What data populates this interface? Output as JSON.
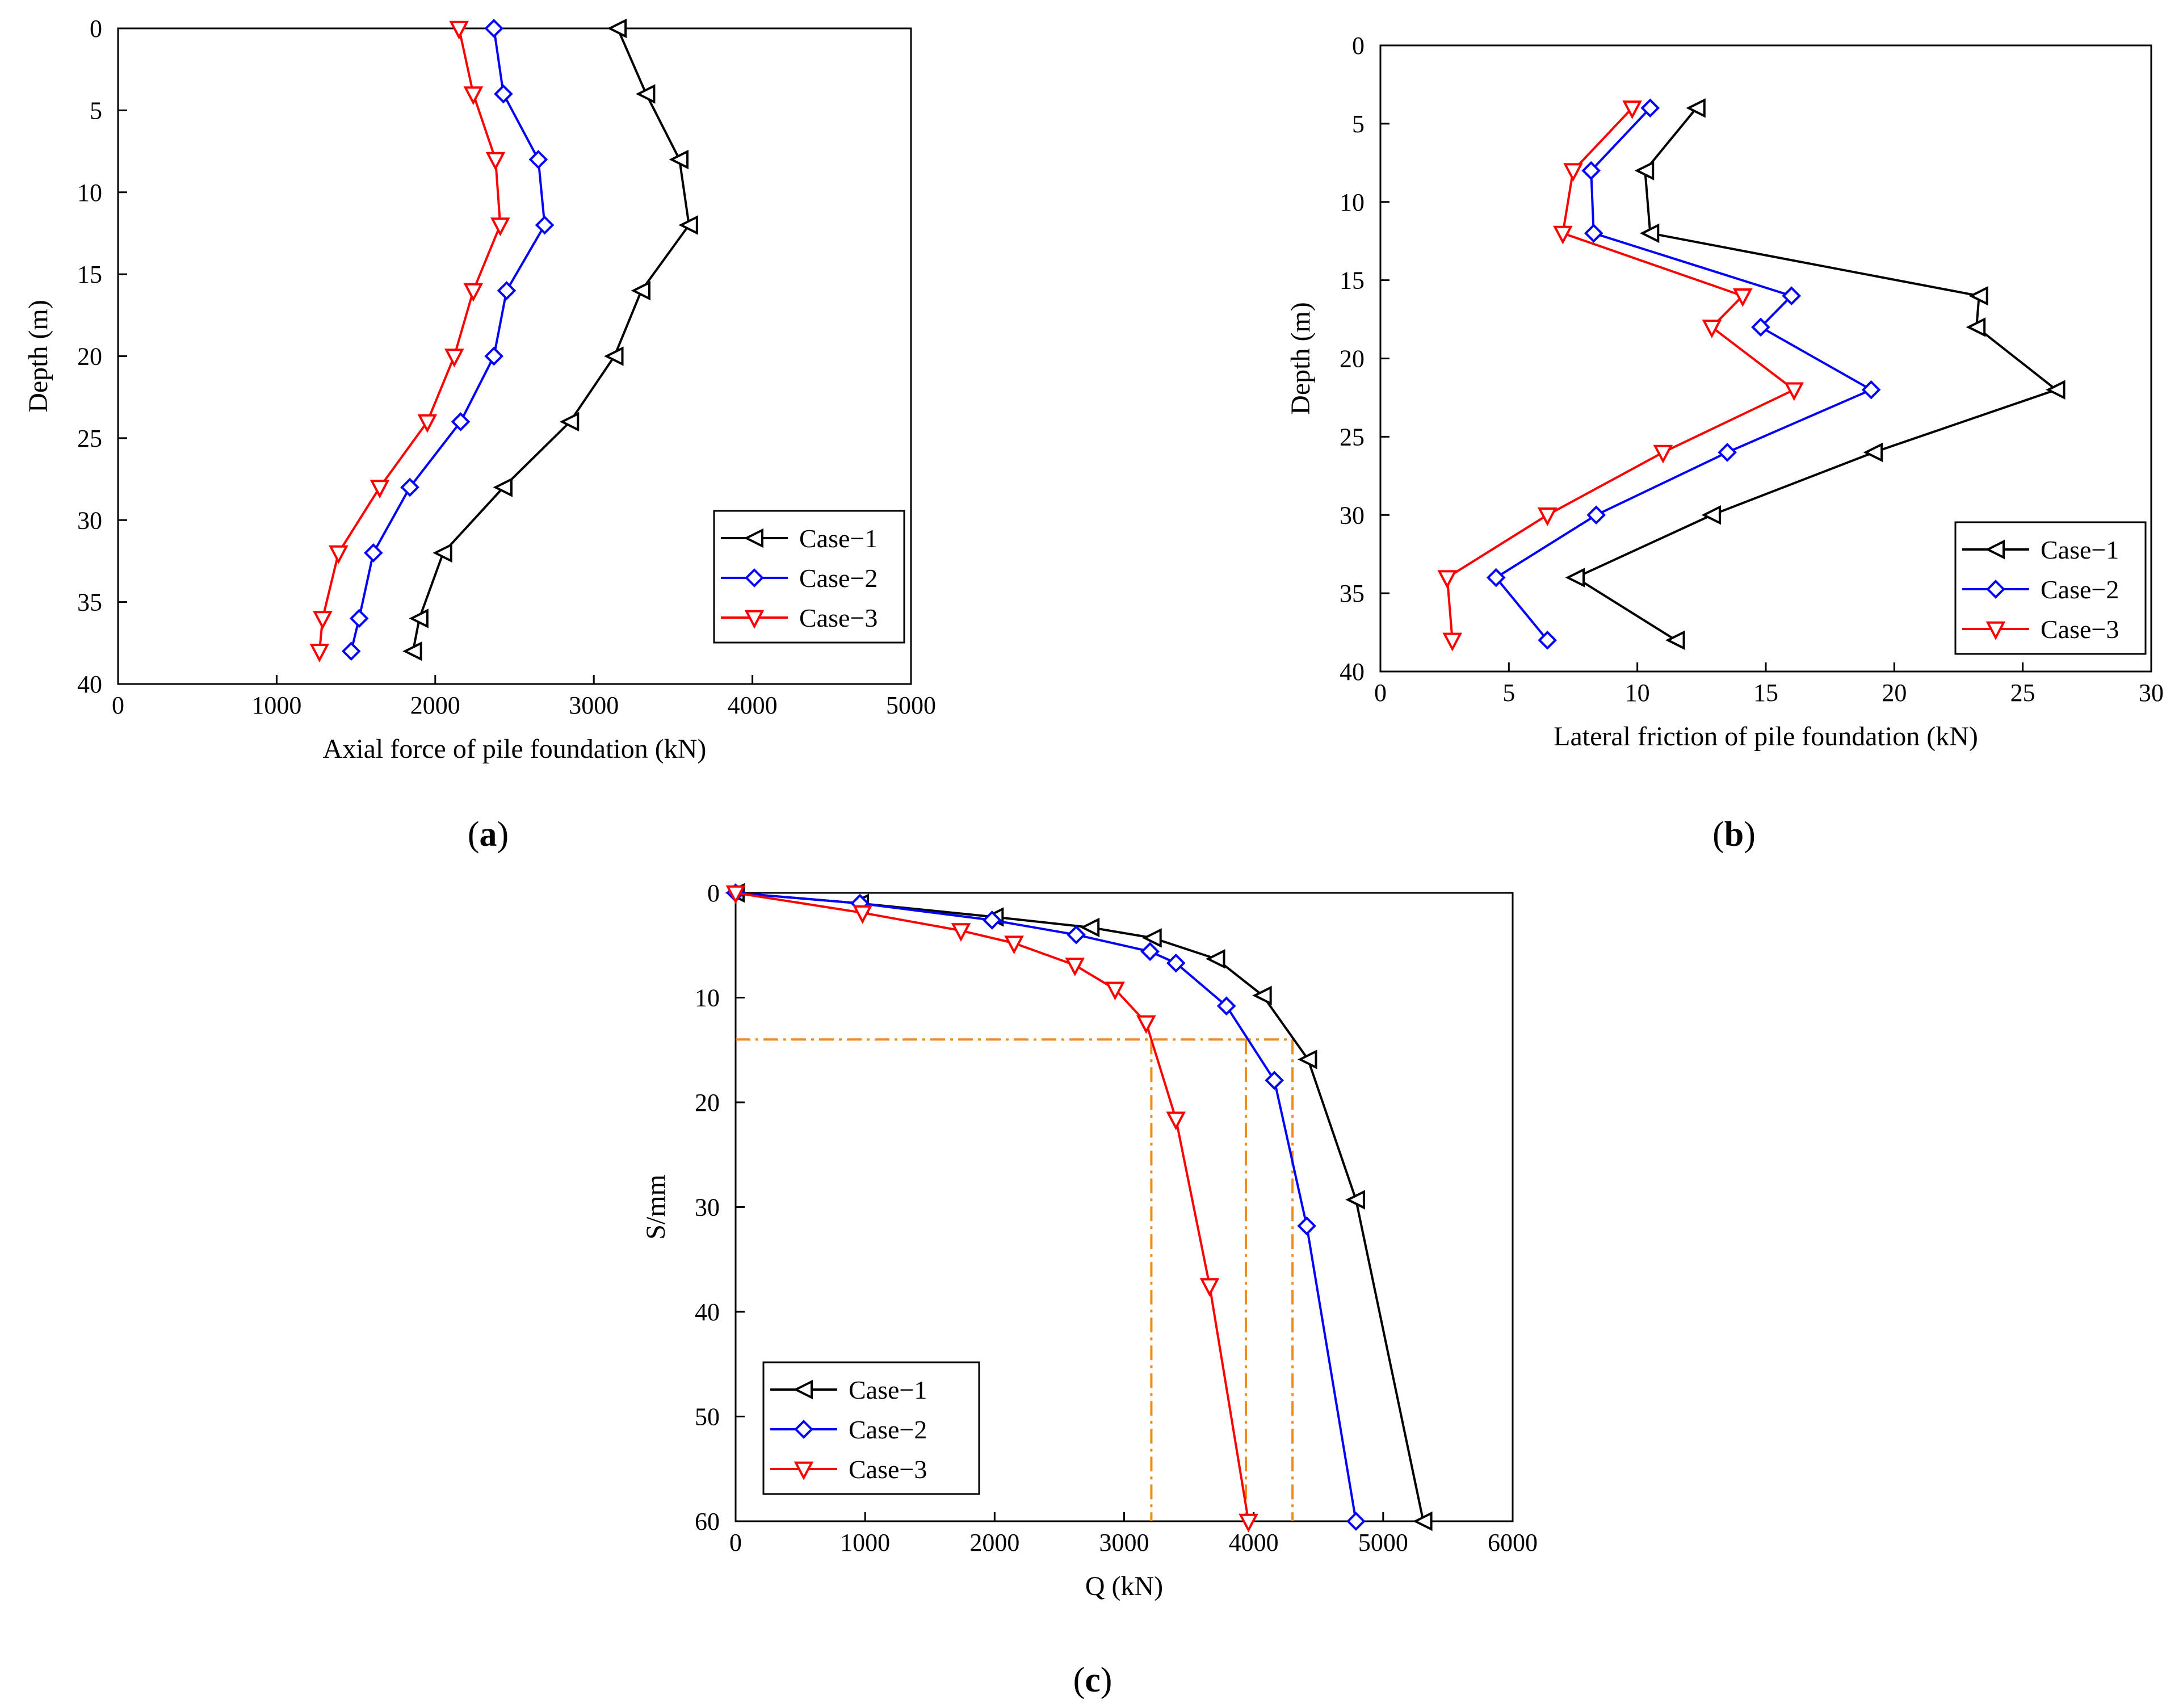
{
  "chart_data": [
    {
      "id": "a",
      "type": "line",
      "panel_label": "a",
      "xlabel": "Axial force of pile foundation (kN)",
      "ylabel": "Depth (m)",
      "xlim": [
        0,
        5000
      ],
      "ylim": [
        0,
        40
      ],
      "y_inverted": true,
      "xticks": [
        0,
        1000,
        2000,
        3000,
        4000,
        5000
      ],
      "yticks": [
        0,
        5,
        10,
        15,
        20,
        25,
        30,
        35,
        40
      ],
      "legend_position": "bottom-right",
      "series": [
        {
          "name": "Case−1",
          "color": "#000000",
          "marker": "triangle-left",
          "x": [
            3150,
            3330,
            3540,
            3600,
            3300,
            3130,
            2850,
            2430,
            2050,
            1900,
            1860
          ],
          "y": [
            0,
            4,
            8,
            12,
            16,
            20,
            24,
            28,
            32,
            36,
            38
          ]
        },
        {
          "name": "Case−2",
          "color": "#0000ff",
          "marker": "diamond",
          "x": [
            2370,
            2430,
            2650,
            2690,
            2450,
            2370,
            2160,
            1840,
            1610,
            1520,
            1470
          ],
          "y": [
            0,
            4,
            8,
            12,
            16,
            20,
            24,
            28,
            32,
            36,
            38
          ]
        },
        {
          "name": "Case−3",
          "color": "#ff0000",
          "marker": "triangle-down",
          "x": [
            2150,
            2240,
            2380,
            2410,
            2240,
            2120,
            1950,
            1650,
            1390,
            1290,
            1270
          ],
          "y": [
            0,
            4,
            8,
            12,
            16,
            20,
            24,
            28,
            32,
            36,
            38
          ]
        }
      ]
    },
    {
      "id": "b",
      "type": "line",
      "panel_label": "b",
      "xlabel": "Lateral friction of pile foundation (kN)",
      "ylabel": "Depth (m)",
      "xlim": [
        0,
        30
      ],
      "ylim": [
        0,
        40
      ],
      "y_inverted": true,
      "xticks": [
        0,
        5,
        10,
        15,
        20,
        25,
        30
      ],
      "yticks": [
        0,
        5,
        10,
        15,
        20,
        25,
        30,
        35,
        40
      ],
      "legend_position": "bottom-right",
      "series": [
        {
          "name": "Case−1",
          "color": "#000000",
          "marker": "triangle-left",
          "x": [
            12.3,
            10.3,
            10.5,
            23.3,
            23.2,
            26.3,
            19.2,
            12.9,
            7.6,
            11.5
          ],
          "y": [
            4,
            8,
            12,
            16,
            18,
            22,
            26,
            30,
            34,
            38
          ]
        },
        {
          "name": "Case−2",
          "color": "#0000ff",
          "marker": "diamond",
          "x": [
            10.5,
            8.2,
            8.3,
            16.0,
            14.8,
            19.1,
            13.5,
            8.4,
            4.5,
            6.5
          ],
          "y": [
            4,
            8,
            12,
            16,
            18,
            22,
            26,
            30,
            34,
            38
          ]
        },
        {
          "name": "Case−3",
          "color": "#ff0000",
          "marker": "triangle-down",
          "x": [
            9.8,
            7.5,
            7.1,
            14.1,
            12.9,
            16.1,
            11.0,
            6.5,
            2.6,
            2.8
          ],
          "y": [
            4,
            8,
            12,
            16,
            18,
            22,
            26,
            30,
            34,
            38
          ]
        }
      ]
    },
    {
      "id": "c",
      "type": "line",
      "panel_label": "c",
      "xlabel": "Q (kN)",
      "ylabel": "S/mm",
      "xlim": [
        0,
        6000
      ],
      "ylim": [
        0,
        60
      ],
      "y_inverted": true,
      "xticks": [
        0,
        1000,
        2000,
        3000,
        4000,
        5000,
        6000
      ],
      "yticks": [
        0,
        10,
        20,
        30,
        40,
        50,
        60
      ],
      "legend_position": "bottom-left",
      "series": [
        {
          "name": "Case−1",
          "color": "#000000",
          "marker": "triangle-left",
          "x": [
            0,
            960,
            2000,
            2740,
            3220,
            3710,
            4070,
            4420,
            4790,
            5310
          ],
          "y": [
            0,
            1.0,
            2.3,
            3.3,
            4.3,
            6.3,
            9.8,
            15.9,
            29.3,
            60
          ]
        },
        {
          "name": "Case−2",
          "color": "#0000ff",
          "marker": "diamond",
          "x": [
            0,
            960,
            1980,
            2630,
            3200,
            3400,
            3790,
            4160,
            4410,
            4790
          ],
          "y": [
            0,
            1.0,
            2.6,
            4.0,
            5.6,
            6.7,
            10.8,
            17.9,
            31.8,
            60
          ]
        },
        {
          "name": "Case−3",
          "color": "#ff0000",
          "marker": "triangle-down",
          "x": [
            0,
            980,
            1740,
            2150,
            2620,
            2930,
            3170,
            3400,
            3660,
            3960
          ],
          "y": [
            0,
            1.9,
            3.6,
            4.8,
            6.9,
            9.2,
            12.4,
            21.6,
            37.5,
            60
          ]
        }
      ],
      "reference_lines": {
        "color": "#f08c1a",
        "style": "dash-dot",
        "horizontal_y": 14,
        "vertical_x": [
          3210,
          3940,
          4300
        ]
      }
    }
  ]
}
